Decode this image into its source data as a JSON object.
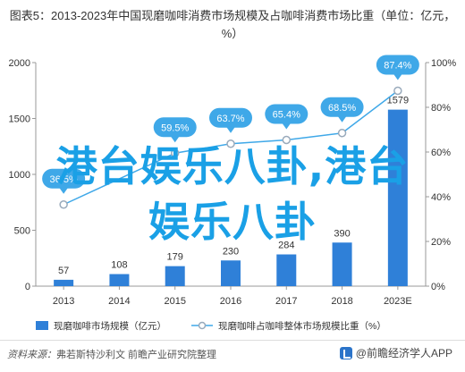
{
  "header": {
    "prefix": "图表5：",
    "title": "2013-2023年中国现磨咖啡消费市场规模及占咖啡消费市场比重（单位：亿元，%）"
  },
  "chart_data": {
    "type": "bar",
    "categories": [
      "2013",
      "2014",
      "2015",
      "2016",
      "2017",
      "2018",
      "2023E"
    ],
    "series": [
      {
        "name": "现磨咖啡市场规模（亿元）",
        "type": "bar",
        "values": [
          57,
          108,
          179,
          230,
          284,
          390,
          1579
        ],
        "color": "#2f80d8"
      },
      {
        "name": "现磨咖啡占咖啡整体市场规模比重（%）",
        "type": "line",
        "values": [
          36.5,
          0,
          59.5,
          63.7,
          65.4,
          68.5,
          87.4
        ],
        "color": "#3fa8e8"
      }
    ],
    "left_axis": {
      "ylim": [
        0,
        2000
      ],
      "ticks": [
        "0",
        "500",
        "1000",
        "1500",
        "2000"
      ]
    },
    "right_axis": {
      "ylim": [
        0,
        100
      ],
      "ticks": [
        "0%",
        "20%",
        "40%",
        "60%",
        "80%",
        "100%"
      ]
    },
    "line_labels": [
      "36.5%",
      "",
      "59.5%",
      "63.7%",
      "65.4%",
      "68.5%",
      "87.4%"
    ],
    "bar_labels": [
      "57",
      "108",
      "179",
      "230",
      "284",
      "390",
      "1579"
    ],
    "legend": {
      "placement": "bottom",
      "bar": "现磨咖啡市场规模（亿元）",
      "line": "现磨咖啡占咖啡整体市场规模比重（%）"
    }
  },
  "overlay": {
    "line1": "港台娱乐八卦,港台",
    "line2": "娱乐八卦"
  },
  "footer": {
    "source_label": "资料来源：",
    "source_text": "弗若斯特沙利文 前瞻产业研究院整理"
  },
  "brand": {
    "name": "@前瞻经济学人APP"
  }
}
